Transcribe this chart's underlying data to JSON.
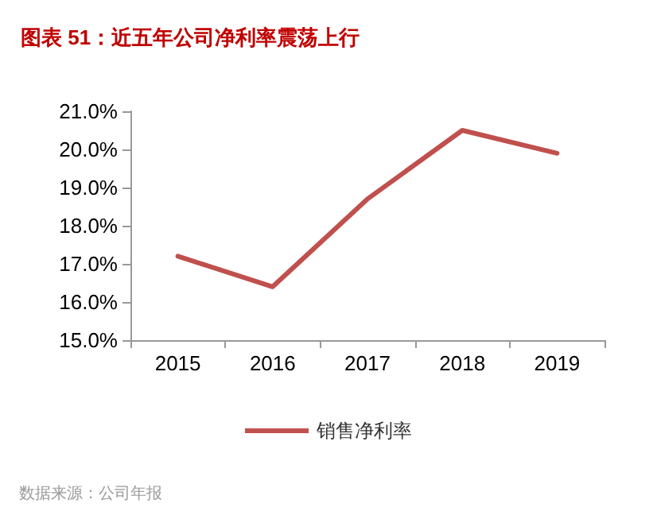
{
  "chart_data": {
    "type": "line",
    "title": "图表 51：近五年公司净利率震荡上行",
    "categories": [
      "2015",
      "2016",
      "2017",
      "2018",
      "2019"
    ],
    "series": [
      {
        "name": "销售净利率",
        "color": "#c0504d",
        "values": [
          17.2,
          16.4,
          18.7,
          20.5,
          19.9
        ]
      }
    ],
    "ylim": [
      15,
      21
    ],
    "yticks": [
      {
        "value": 15,
        "label": "15.0%"
      },
      {
        "value": 16,
        "label": "16.0%"
      },
      {
        "value": 17,
        "label": "17.0%"
      },
      {
        "value": 18,
        "label": "18.0%"
      },
      {
        "value": 19,
        "label": "19.0%"
      },
      {
        "value": 20,
        "label": "20.0%"
      },
      {
        "value": 21,
        "label": "21.0%"
      }
    ],
    "legend": "bottom",
    "grid": false,
    "marker": "none",
    "line_style": "solid",
    "annotations": [
      "数据来源：公司年报"
    ]
  }
}
